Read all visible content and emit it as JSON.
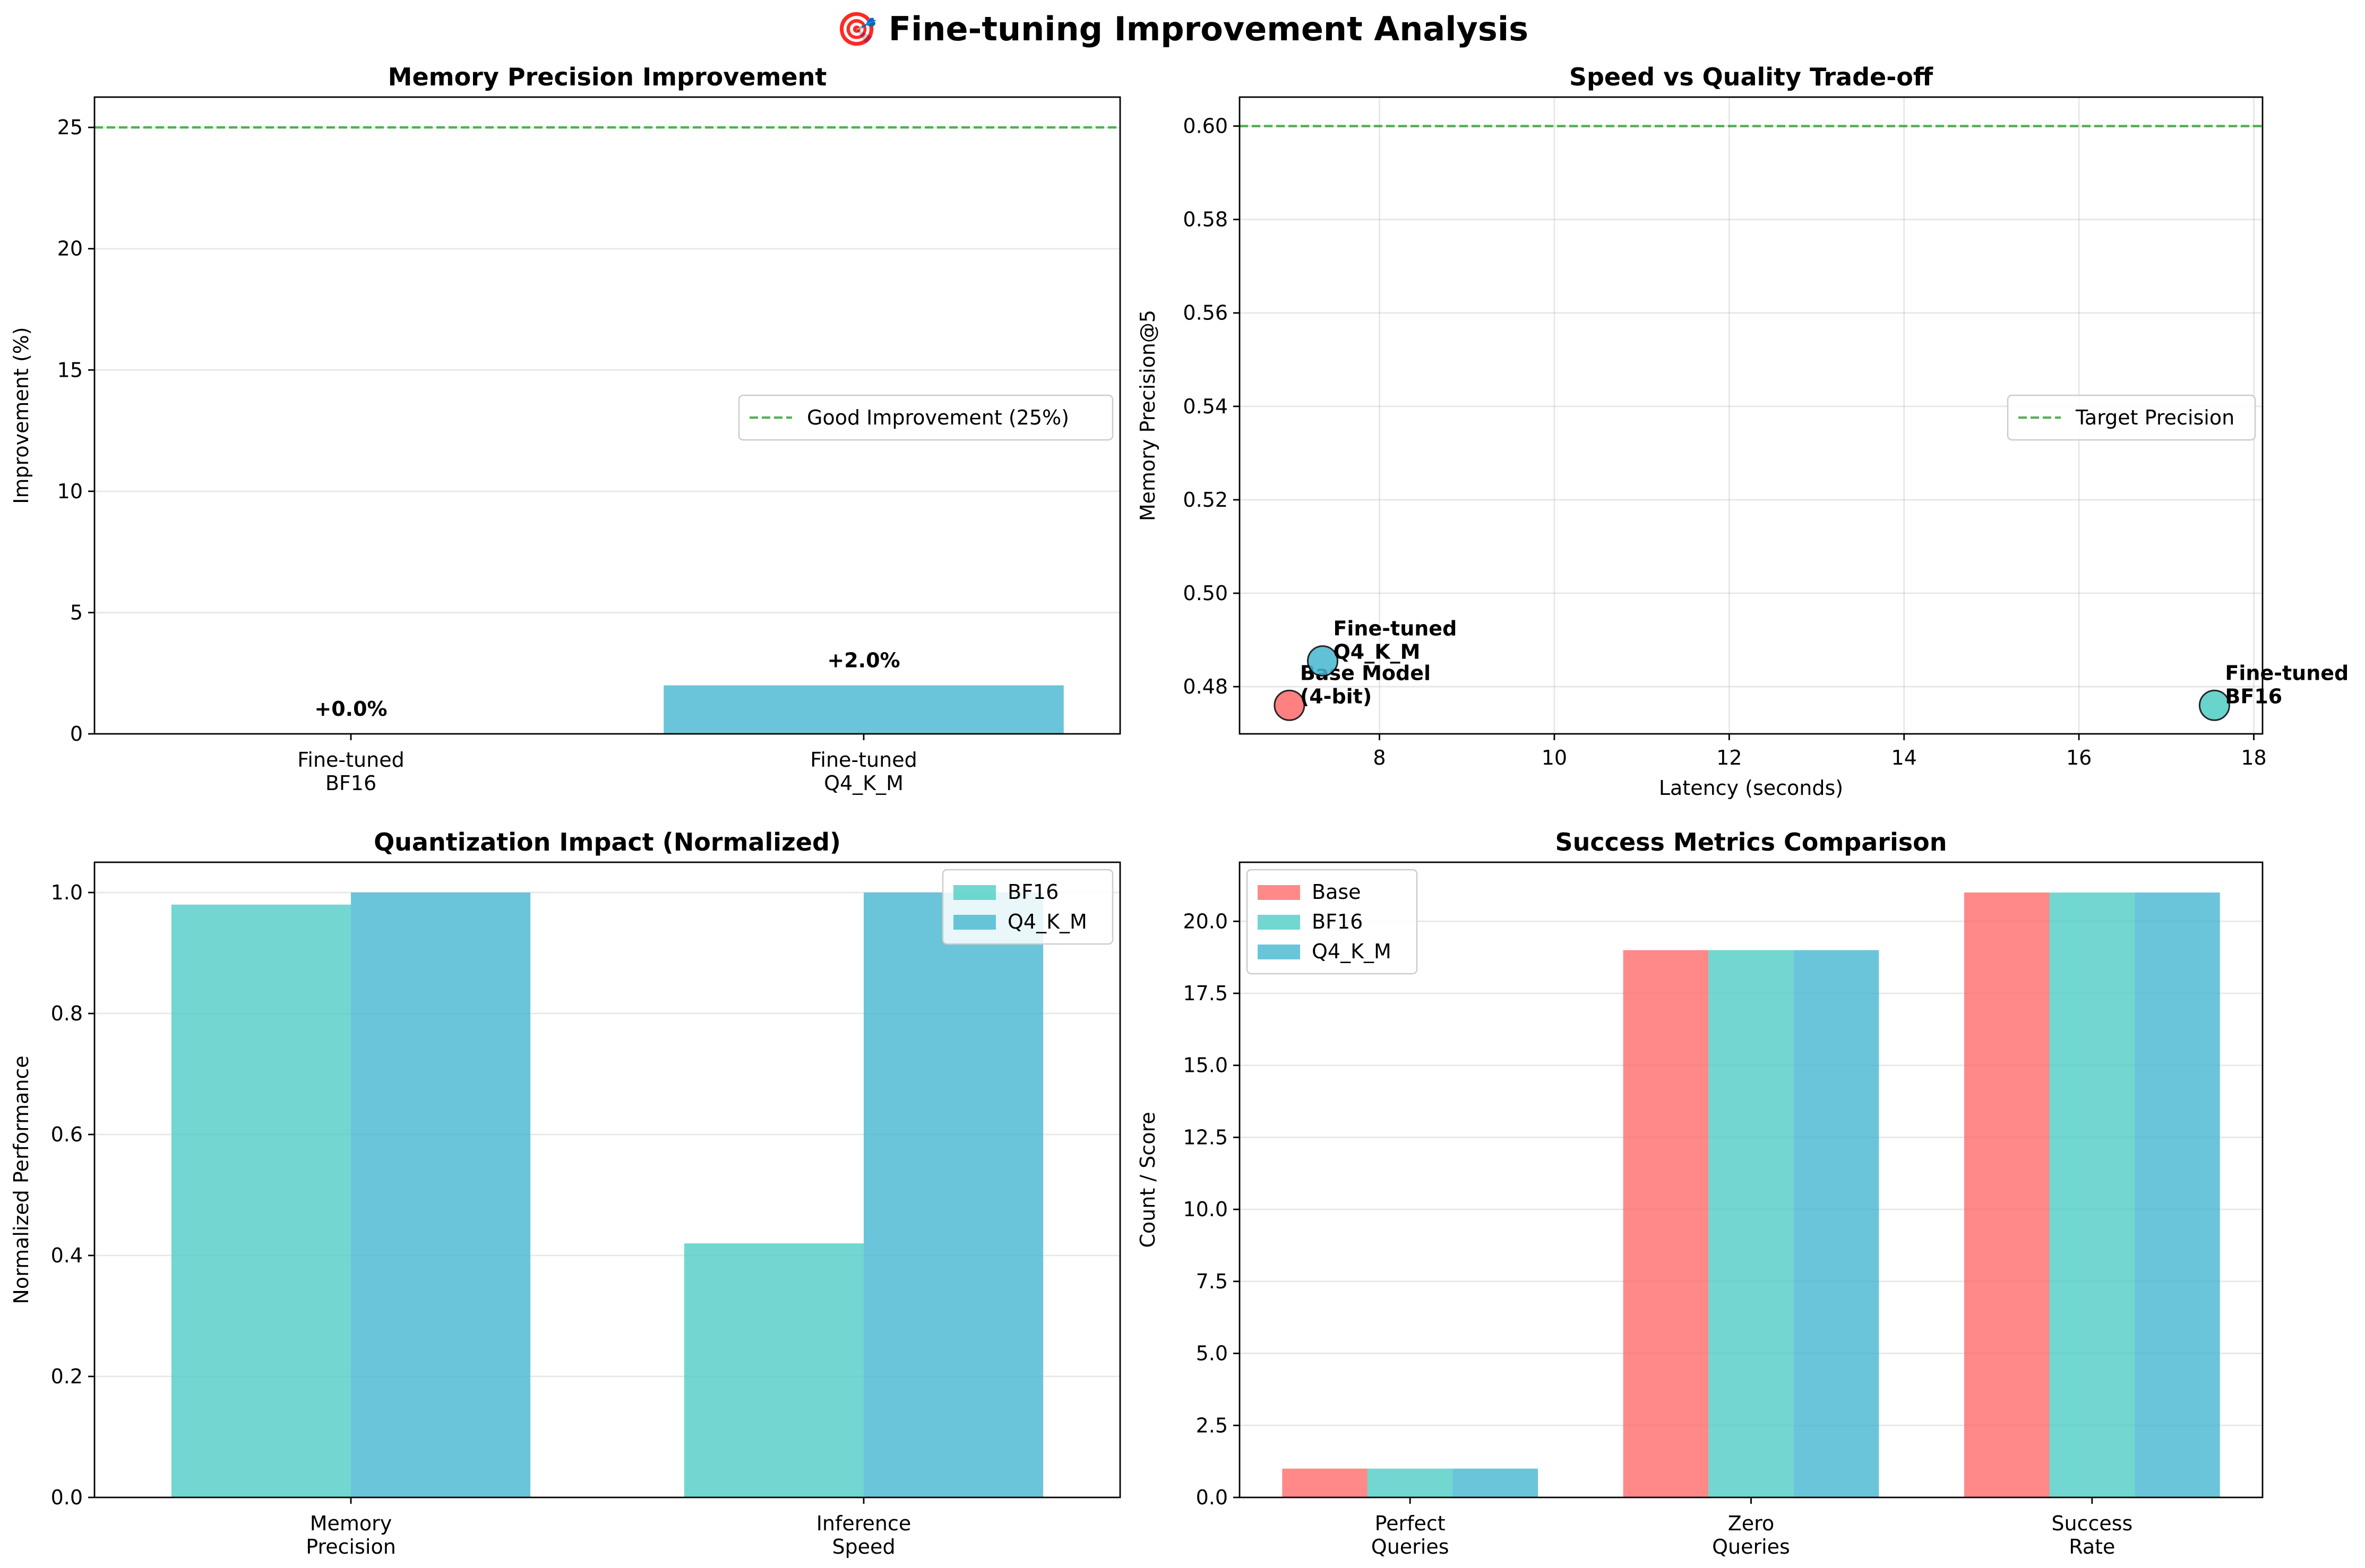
{
  "suptitle": "🎯 Fine-tuning Improvement Analysis",
  "colors": {
    "base": "#ff6b6b",
    "bf16": "#4ecdc4",
    "q4": "#45b7d1",
    "ref_line": "#2ca02c"
  },
  "chart_data": [
    {
      "type": "bar",
      "title": "Memory Precision Improvement",
      "xlabel": "",
      "ylabel": "Improvement (%)",
      "categories": [
        "Fine-tuned\nBF16",
        "Fine-tuned\nQ4_K_M"
      ],
      "values": [
        0.0,
        2.0
      ],
      "value_labels": [
        "+0.0%",
        "+2.0%"
      ],
      "ylim": [
        0,
        26.25
      ],
      "yticks": [
        0,
        5,
        10,
        15,
        20,
        25
      ],
      "reference_line": {
        "y": 25,
        "label": "Good Improvement (25%)",
        "style": "dashed"
      },
      "legend": "center-right",
      "grid": "y"
    },
    {
      "type": "scatter",
      "title": "Speed vs Quality Trade-off",
      "xlabel": "Latency (seconds)",
      "ylabel": "Memory Precision@5",
      "xlim": [
        6.4,
        18.1
      ],
      "ylim": [
        0.4699,
        0.6062
      ],
      "xticks": [
        8,
        10,
        12,
        14,
        16,
        18
      ],
      "yticks": [
        0.48,
        0.5,
        0.52,
        0.54,
        0.56,
        0.58,
        0.6
      ],
      "ytick_labels": [
        "0.48",
        "0.50",
        "0.52",
        "0.54",
        "0.56",
        "0.58",
        "0.60"
      ],
      "points": [
        {
          "x": 6.97,
          "y": 0.476,
          "label": "Base Model\n(4-bit)",
          "color": "base"
        },
        {
          "x": 17.55,
          "y": 0.476,
          "label": "Fine-tuned\nBF16",
          "color": "bf16"
        },
        {
          "x": 7.35,
          "y": 0.4855,
          "label": "Fine-tuned\nQ4_K_M",
          "color": "q4"
        }
      ],
      "reference_line": {
        "y": 0.6,
        "label": "Target Precision",
        "style": "dashed"
      },
      "legend": "center-right",
      "grid": "both"
    },
    {
      "type": "bar",
      "title": "Quantization Impact (Normalized)",
      "xlabel": "",
      "ylabel": "Normalized Performance",
      "categories": [
        "Memory\nPrecision",
        "Inference\nSpeed"
      ],
      "series": [
        {
          "name": "BF16",
          "values": [
            0.98,
            0.42
          ],
          "color": "bf16"
        },
        {
          "name": "Q4_K_M",
          "values": [
            1.0,
            1.0
          ],
          "color": "q4"
        }
      ],
      "ylim": [
        0,
        1.05
      ],
      "yticks": [
        0.0,
        0.2,
        0.4,
        0.6,
        0.8,
        1.0
      ],
      "ytick_labels": [
        "0.0",
        "0.2",
        "0.4",
        "0.6",
        "0.8",
        "1.0"
      ],
      "legend": "top-right",
      "grid": "y"
    },
    {
      "type": "bar",
      "title": "Success Metrics Comparison",
      "xlabel": "",
      "ylabel": "Count / Score",
      "categories": [
        "Perfect\nQueries",
        "Zero\nQueries",
        "Success\nRate"
      ],
      "series": [
        {
          "name": "Base",
          "values": [
            1,
            19,
            21
          ],
          "color": "base"
        },
        {
          "name": "BF16",
          "values": [
            1,
            19,
            21
          ],
          "color": "bf16"
        },
        {
          "name": "Q4_K_M",
          "values": [
            1,
            19,
            21
          ],
          "color": "q4"
        }
      ],
      "ylim": [
        0,
        22.05
      ],
      "yticks": [
        0,
        2.5,
        5,
        7.5,
        10,
        12.5,
        15,
        17.5,
        20
      ],
      "ytick_labels": [
        "0.0",
        "2.5",
        "5.0",
        "7.5",
        "10.0",
        "12.5",
        "15.0",
        "17.5",
        "20.0"
      ],
      "legend": "top-left",
      "grid": "y"
    }
  ]
}
